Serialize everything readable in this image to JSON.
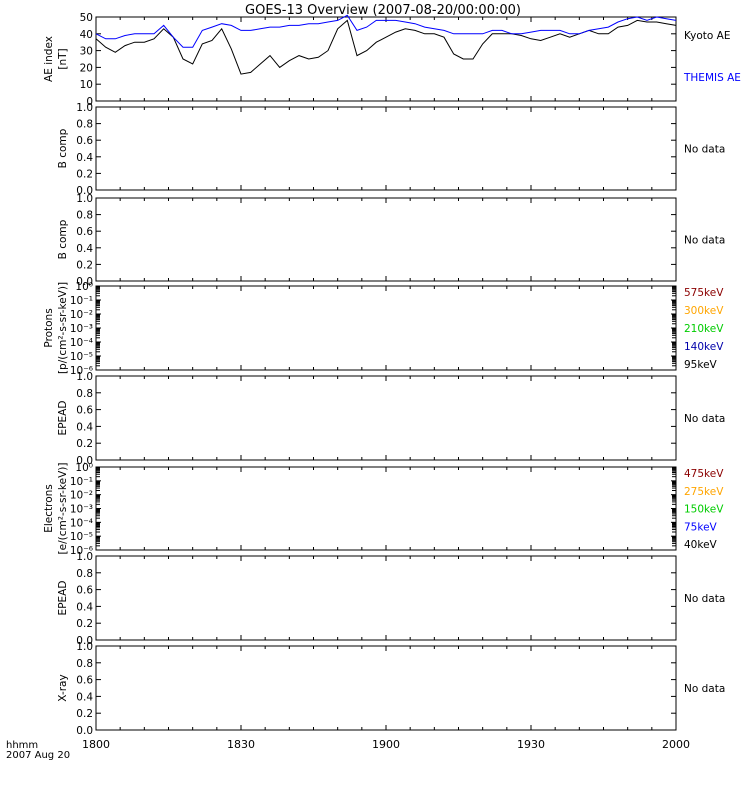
{
  "title": "GOES-13 Overview (2007-08-20/00:00:00)",
  "x_axis": {
    "tick_labels": [
      "1800",
      "1830",
      "1900",
      "1930",
      "2000"
    ],
    "corner_label_line1": "hhmm",
    "corner_label_line2": "2007 Aug 20"
  },
  "no_data_text": "No data",
  "colors": {
    "kyoto": "#000000",
    "themis": "#0000ff",
    "ch575": "#8b0000",
    "ch300": "#ffa500",
    "ch210": "#00cc00",
    "ch140": "#0000aa",
    "ch95": "#000000",
    "ch475": "#8b0000",
    "ch275": "#ffa500",
    "ch150": "#00cc00",
    "ch75": "#0000ff",
    "ch40": "#000000"
  },
  "chart_data": [
    {
      "type": "line",
      "ylabel_line1": "AE index",
      "ylabel_line2": "[nT]",
      "ylim": [
        0,
        50
      ],
      "yticks": [
        "0",
        "10",
        "20",
        "30",
        "40",
        "50"
      ],
      "x": [
        0,
        2,
        4,
        6,
        8,
        10,
        12,
        14,
        16,
        18,
        20,
        22,
        24,
        26,
        28,
        30,
        32,
        34,
        36,
        38,
        40,
        42,
        44,
        46,
        48,
        50,
        52,
        54,
        56,
        58,
        60,
        62,
        64,
        66,
        68,
        70,
        72,
        74,
        76,
        78,
        80,
        82,
        84,
        86,
        88,
        90,
        92,
        94,
        96,
        98,
        100,
        102,
        104,
        106,
        108,
        110,
        112,
        114,
        116,
        118,
        120
      ],
      "series": [
        {
          "name": "Kyoto AE",
          "color": "#000000",
          "values": [
            37,
            32,
            29,
            33,
            35,
            35,
            37,
            43,
            38,
            25,
            22,
            34,
            36,
            43,
            31,
            16,
            17,
            22,
            27,
            20,
            24,
            27,
            25,
            26,
            30,
            43,
            48,
            27,
            30,
            35,
            38,
            41,
            43,
            42,
            40,
            40,
            38,
            28,
            25,
            25,
            34,
            40,
            40,
            40,
            39,
            37,
            36,
            38,
            40,
            38,
            40,
            42,
            40,
            40,
            44,
            45,
            48,
            47,
            47,
            46,
            45
          ]
        },
        {
          "name": "THEMIS AE",
          "color": "#0000ff",
          "values": [
            40,
            37,
            37,
            39,
            40,
            40,
            40,
            45,
            38,
            32,
            32,
            42,
            44,
            46,
            45,
            42,
            42,
            43,
            44,
            44,
            45,
            45,
            46,
            46,
            47,
            48,
            51,
            42,
            44,
            48,
            48,
            48,
            47,
            46,
            44,
            43,
            42,
            40,
            40,
            40,
            40,
            42,
            42,
            40,
            40,
            41,
            42,
            42,
            42,
            40,
            40,
            42,
            43,
            44,
            47,
            49,
            50,
            48,
            50,
            49,
            48
          ]
        }
      ],
      "legend": [
        "Kyoto AE",
        "THEMIS AE"
      ]
    },
    {
      "type": "line",
      "ylabel_line1": "B comp",
      "ylim": [
        0,
        1
      ],
      "yticks": [
        "0.0",
        "0.2",
        "0.4",
        "0.6",
        "0.8",
        "1.0"
      ],
      "status": "No data"
    },
    {
      "type": "line",
      "ylabel_line1": "B comp",
      "ylim": [
        0,
        1
      ],
      "yticks": [
        "0.0",
        "0.2",
        "0.4",
        "0.6",
        "0.8",
        "1.0"
      ],
      "status": "No data"
    },
    {
      "type": "line",
      "scale": "log",
      "ylabel_line1": "Protons",
      "ylabel_line2": "[p/(cm²-s-sr-keV)]",
      "yticks": [
        "10⁻⁶",
        "10⁻⁵",
        "10⁻⁴",
        "10⁻³",
        "10⁻²",
        "10⁻¹",
        "10⁰"
      ],
      "legend": [
        "575keV",
        "300keV",
        "210keV",
        "140keV",
        "95keV"
      ]
    },
    {
      "type": "line",
      "ylabel_line1": "EPEAD",
      "ylim": [
        0,
        1
      ],
      "yticks": [
        "0.0",
        "0.2",
        "0.4",
        "0.6",
        "0.8",
        "1.0"
      ],
      "status": "No data"
    },
    {
      "type": "line",
      "scale": "log",
      "ylabel_line1": "Electrons",
      "ylabel_line2": "[e/(cm²-s-sr-keV)]",
      "yticks": [
        "10⁻⁶",
        "10⁻⁵",
        "10⁻⁴",
        "10⁻³",
        "10⁻²",
        "10⁻¹",
        "10⁰"
      ],
      "legend": [
        "475keV",
        "275keV",
        "150keV",
        "75keV",
        "40keV"
      ]
    },
    {
      "type": "line",
      "ylabel_line1": "EPEAD",
      "ylim": [
        0,
        1
      ],
      "yticks": [
        "0.0",
        "0.2",
        "0.4",
        "0.6",
        "0.8",
        "1.0"
      ],
      "status": "No data"
    },
    {
      "type": "line",
      "ylabel_line1": "X-ray",
      "ylim": [
        0,
        1
      ],
      "yticks": [
        "0.0",
        "0.2",
        "0.4",
        "0.6",
        "0.8",
        "1.0"
      ],
      "status": "No data"
    }
  ]
}
